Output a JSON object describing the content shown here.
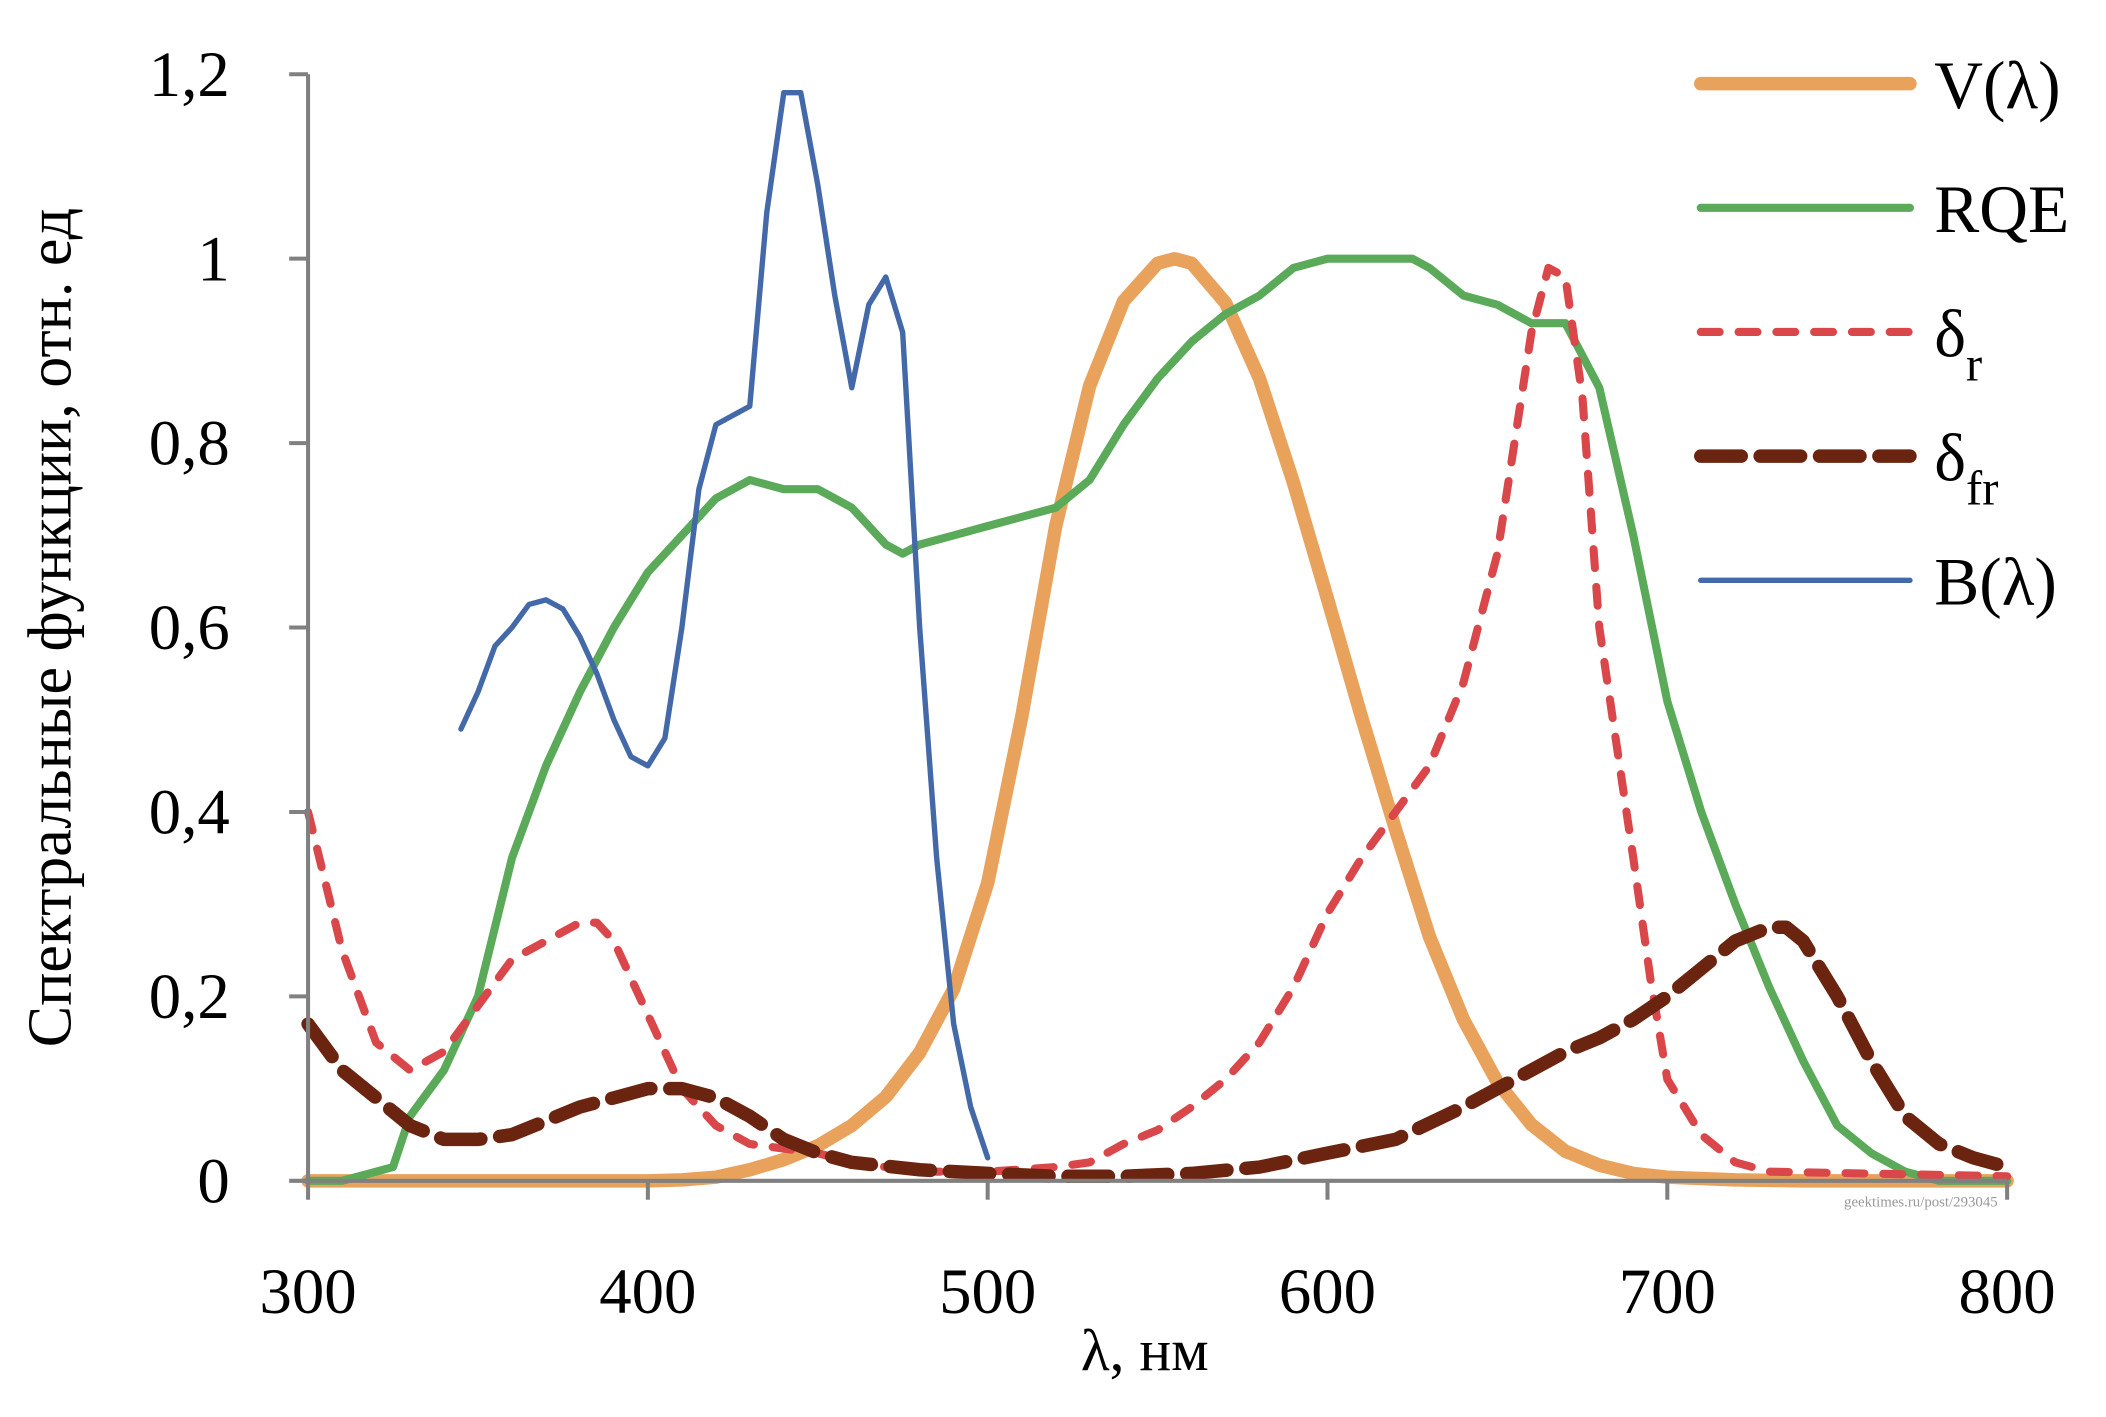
{
  "chart_data": {
    "type": "line",
    "title": "",
    "xlabel": "λ, нм",
    "ylabel": "Спектральные функции, отн. ед",
    "xlim": [
      300,
      800
    ],
    "ylim": [
      0,
      1.2
    ],
    "xticks": [
      "300",
      "400",
      "500",
      "600",
      "700",
      "800"
    ],
    "xtick_values": [
      300,
      400,
      500,
      600,
      700,
      800
    ],
    "yticks": [
      "0",
      "0,2",
      "0,4",
      "0,6",
      "0,8",
      "1",
      "1,2"
    ],
    "ytick_values": [
      0,
      0.2,
      0.4,
      0.6,
      0.8,
      1.0,
      1.2
    ],
    "grid": false,
    "legend_position": "top-right",
    "watermark": "geektimes.ru/post/293045",
    "series": [
      {
        "name": "V(λ)",
        "label_main": "V(λ)",
        "label_sub": "",
        "color": "#E9A25C",
        "style": "solid-thick",
        "x": [
          300,
          400,
          410,
          420,
          430,
          440,
          450,
          460,
          470,
          480,
          490,
          500,
          510,
          520,
          530,
          540,
          550,
          555,
          560,
          570,
          580,
          590,
          600,
          610,
          620,
          630,
          640,
          650,
          660,
          670,
          680,
          690,
          700,
          720,
          740,
          800
        ],
        "y": [
          0,
          0,
          0.001,
          0.004,
          0.012,
          0.023,
          0.038,
          0.06,
          0.091,
          0.139,
          0.208,
          0.323,
          0.503,
          0.71,
          0.862,
          0.954,
          0.995,
          1.0,
          0.995,
          0.952,
          0.87,
          0.757,
          0.631,
          0.503,
          0.381,
          0.265,
          0.175,
          0.107,
          0.061,
          0.032,
          0.017,
          0.008,
          0.004,
          0.001,
          0,
          0
        ]
      },
      {
        "name": "RQE",
        "label_main": "RQE",
        "label_sub": "",
        "color": "#5AAA5A",
        "style": "solid",
        "x": [
          300,
          310,
          320,
          325,
          330,
          340,
          350,
          360,
          370,
          380,
          390,
          400,
          410,
          420,
          430,
          440,
          450,
          460,
          470,
          475,
          480,
          490,
          500,
          510,
          520,
          530,
          540,
          550,
          560,
          570,
          580,
          590,
          600,
          610,
          620,
          625,
          630,
          640,
          650,
          660,
          670,
          680,
          690,
          700,
          710,
          720,
          730,
          740,
          750,
          760,
          770,
          780,
          800
        ],
        "y": [
          0,
          0,
          0.01,
          0.015,
          0.07,
          0.12,
          0.2,
          0.35,
          0.45,
          0.53,
          0.6,
          0.66,
          0.7,
          0.74,
          0.76,
          0.75,
          0.75,
          0.73,
          0.69,
          0.68,
          0.69,
          0.7,
          0.71,
          0.72,
          0.73,
          0.76,
          0.82,
          0.87,
          0.91,
          0.94,
          0.96,
          0.99,
          1,
          1,
          1,
          1,
          0.99,
          0.96,
          0.95,
          0.93,
          0.93,
          0.86,
          0.7,
          0.52,
          0.4,
          0.3,
          0.21,
          0.13,
          0.06,
          0.03,
          0.01,
          0,
          0
        ]
      },
      {
        "name": "δr",
        "label_main": "δ",
        "label_sub": "r",
        "color": "#D9474A",
        "style": "dotted",
        "x": [
          300,
          310,
          320,
          330,
          340,
          350,
          360,
          370,
          380,
          385,
          390,
          400,
          410,
          420,
          430,
          440,
          450,
          460,
          480,
          500,
          520,
          530,
          540,
          550,
          560,
          570,
          580,
          590,
          600,
          610,
          620,
          630,
          640,
          650,
          655,
          660,
          665,
          670,
          675,
          680,
          690,
          695,
          700,
          710,
          720,
          730,
          800
        ],
        "y": [
          0.4,
          0.25,
          0.15,
          0.12,
          0.14,
          0.19,
          0.24,
          0.26,
          0.28,
          0.28,
          0.26,
          0.18,
          0.1,
          0.06,
          0.04,
          0.035,
          0.03,
          0.02,
          0.01,
          0.01,
          0.015,
          0.02,
          0.04,
          0.055,
          0.08,
          0.11,
          0.15,
          0.21,
          0.29,
          0.35,
          0.4,
          0.45,
          0.54,
          0.68,
          0.8,
          0.92,
          0.99,
          0.98,
          0.85,
          0.6,
          0.35,
          0.22,
          0.11,
          0.05,
          0.02,
          0.01,
          0.005
        ]
      },
      {
        "name": "δfr",
        "label_main": "δ",
        "label_sub": "fr",
        "color": "#6B2410",
        "style": "dashed-thick",
        "x": [
          300,
          310,
          320,
          330,
          340,
          350,
          360,
          370,
          380,
          390,
          400,
          410,
          420,
          430,
          440,
          450,
          460,
          480,
          500,
          520,
          540,
          560,
          580,
          600,
          620,
          640,
          660,
          670,
          680,
          690,
          700,
          710,
          720,
          730,
          735,
          740,
          750,
          760,
          770,
          780,
          790,
          800
        ],
        "y": [
          0.17,
          0.12,
          0.09,
          0.06,
          0.045,
          0.045,
          0.05,
          0.065,
          0.08,
          0.09,
          0.1,
          0.1,
          0.09,
          0.07,
          0.045,
          0.03,
          0.02,
          0.012,
          0.008,
          0.005,
          0.005,
          0.008,
          0.015,
          0.03,
          0.045,
          0.08,
          0.12,
          0.14,
          0.155,
          0.175,
          0.2,
          0.23,
          0.26,
          0.275,
          0.275,
          0.26,
          0.2,
          0.13,
          0.07,
          0.04,
          0.025,
          0.015
        ]
      },
      {
        "name": "B(λ)",
        "label_main": "B(λ)",
        "label_sub": "",
        "color": "#4469A8",
        "style": "solid-thin",
        "x": [
          345,
          350,
          355,
          360,
          365,
          370,
          375,
          380,
          385,
          390,
          395,
          400,
          405,
          410,
          415,
          420,
          425,
          430,
          435,
          440,
          445,
          450,
          455,
          460,
          465,
          470,
          475,
          480,
          485,
          490,
          495,
          500
        ],
        "y": [
          0.49,
          0.53,
          0.58,
          0.6,
          0.625,
          0.63,
          0.62,
          0.59,
          0.55,
          0.5,
          0.46,
          0.45,
          0.48,
          0.6,
          0.75,
          0.82,
          0.83,
          0.84,
          1.05,
          1.18,
          1.18,
          1.08,
          0.96,
          0.86,
          0.95,
          0.98,
          0.92,
          0.6,
          0.35,
          0.17,
          0.08,
          0.025
        ]
      }
    ]
  }
}
